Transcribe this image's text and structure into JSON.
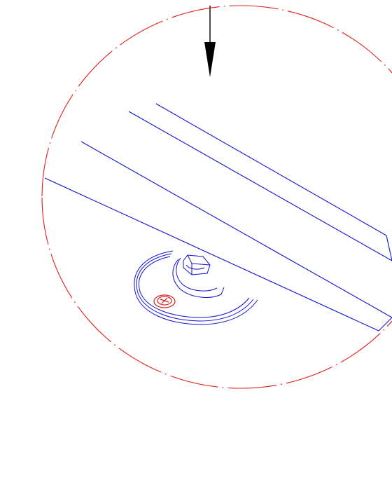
{
  "drawing": {
    "type": "technical-detail-view",
    "colors": {
      "background": "#ffffff",
      "detail_circle": "#e0201c",
      "part_lines": "#1010d0",
      "fastener": "#d82020",
      "arrow": "#000000"
    },
    "elements": {
      "view_arrow": "downward-arrow-icon",
      "detail_boundary": "dash-dot-circle",
      "rails": "diagonal-rails",
      "mount": "leveling-foot-base",
      "nut": "hex-nut",
      "screw": "phillips-screw-icon"
    }
  }
}
